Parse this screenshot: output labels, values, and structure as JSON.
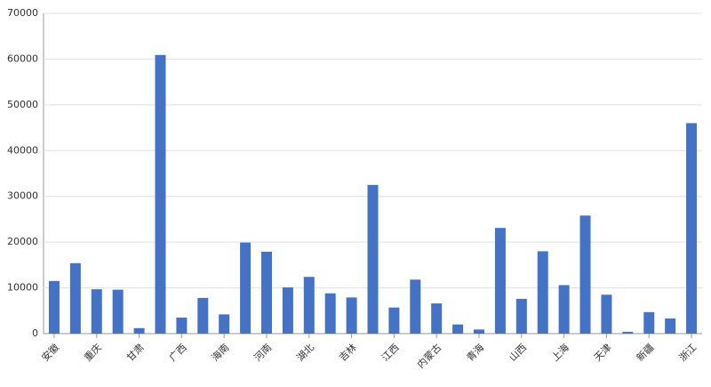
{
  "chart_data": {
    "type": "bar",
    "categories": [
      "安徽",
      null,
      "重庆",
      null,
      "甘肃",
      null,
      "广西",
      null,
      "海南",
      null,
      "河南",
      null,
      "湖北",
      null,
      "吉林",
      null,
      "江西",
      null,
      "内蒙古",
      null,
      "青海",
      null,
      "山西",
      null,
      "上海",
      null,
      "天津",
      null,
      "新疆",
      null,
      "浙江"
    ],
    "values": [
      11500,
      15400,
      9700,
      9600,
      1200,
      60900,
      3500,
      7800,
      4200,
      19900,
      17900,
      10100,
      12400,
      8800,
      7900,
      32500,
      5700,
      11800,
      6600,
      2000,
      900,
      23100,
      7600,
      18000,
      10600,
      25800,
      8500,
      400,
      4700,
      3300,
      46000
    ],
    "color": "#4472c4",
    "ylim": [
      0,
      70000
    ],
    "yticks": [
      0,
      10000,
      20000,
      30000,
      40000,
      50000,
      60000,
      70000
    ],
    "grid": true
  }
}
